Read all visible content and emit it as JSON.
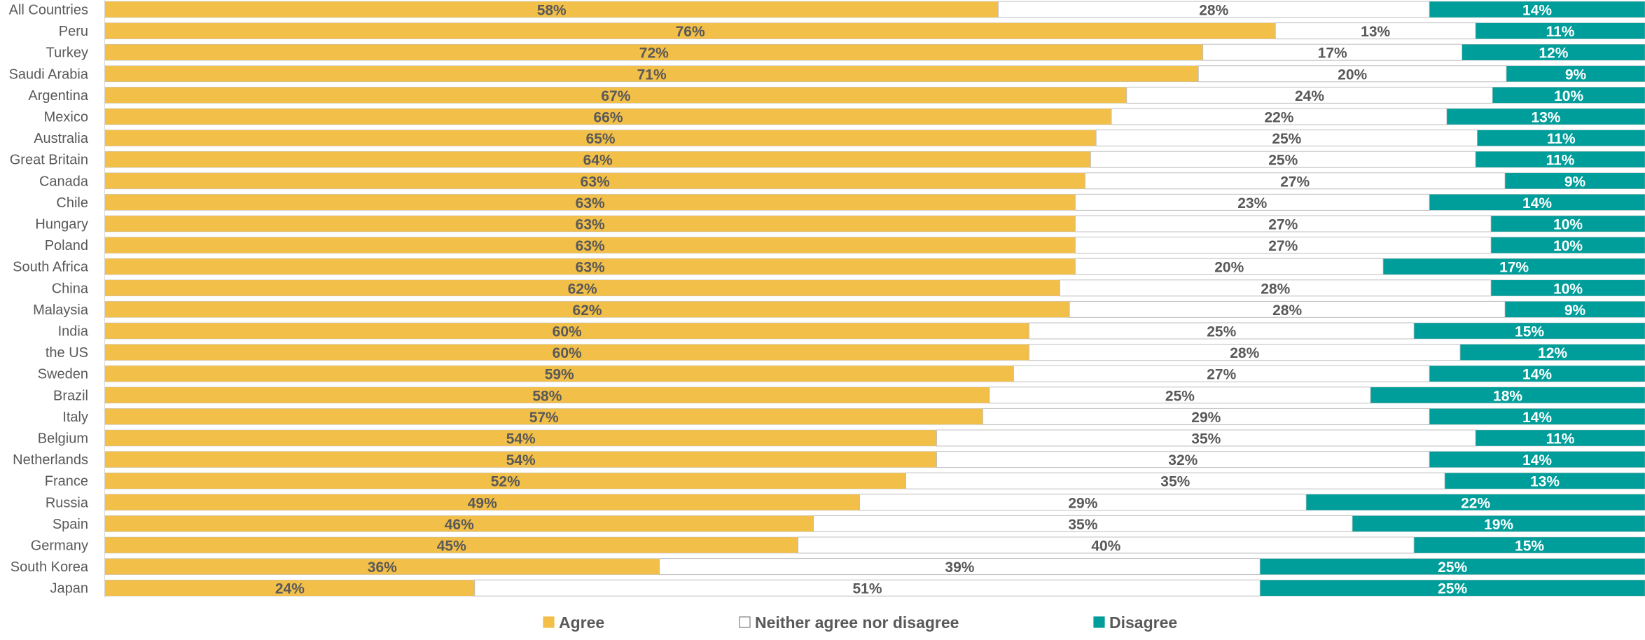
{
  "chart_data": {
    "type": "bar",
    "orientation": "horizontal",
    "stacked": "100%",
    "categories": [
      "All Countries",
      "Peru",
      "Turkey",
      "Saudi Arabia",
      "Argentina",
      "Mexico",
      "Australia",
      "Great Britain",
      "Canada",
      "Chile",
      "Hungary",
      "Poland",
      "South Africa",
      "China",
      "Malaysia",
      "India",
      "the US",
      "Sweden",
      "Brazil",
      "Italy",
      "Belgium",
      "Netherlands",
      "France",
      "Russia",
      "Spain",
      "Germany",
      "South Korea",
      "Japan"
    ],
    "series": [
      {
        "name": "Agree",
        "color": "#F2BF49",
        "label_color": "#595959",
        "values": [
          58,
          76,
          72,
          71,
          67,
          66,
          65,
          64,
          63,
          63,
          63,
          63,
          63,
          62,
          62,
          60,
          60,
          59,
          58,
          57,
          54,
          54,
          52,
          49,
          46,
          45,
          36,
          24
        ]
      },
      {
        "name": "Neither agree nor disagree",
        "color": "#FFFFFF",
        "label_color": "#595959",
        "values": [
          28,
          13,
          17,
          20,
          24,
          22,
          25,
          25,
          27,
          23,
          27,
          27,
          20,
          28,
          28,
          25,
          28,
          27,
          25,
          29,
          35,
          32,
          35,
          29,
          35,
          40,
          39,
          51
        ]
      },
      {
        "name": "Disagree",
        "color": "#009E9A",
        "label_color": "#FFFFFF",
        "values": [
          14,
          11,
          12,
          9,
          10,
          13,
          11,
          11,
          9,
          14,
          10,
          10,
          17,
          10,
          9,
          15,
          12,
          14,
          18,
          14,
          11,
          14,
          13,
          22,
          19,
          15,
          25,
          25
        ]
      }
    ],
    "value_suffix": "%",
    "legend_position": "bottom",
    "grid": false,
    "segment_border_color": "#BFBFBF",
    "title": "",
    "xlabel": "",
    "ylabel": ""
  }
}
